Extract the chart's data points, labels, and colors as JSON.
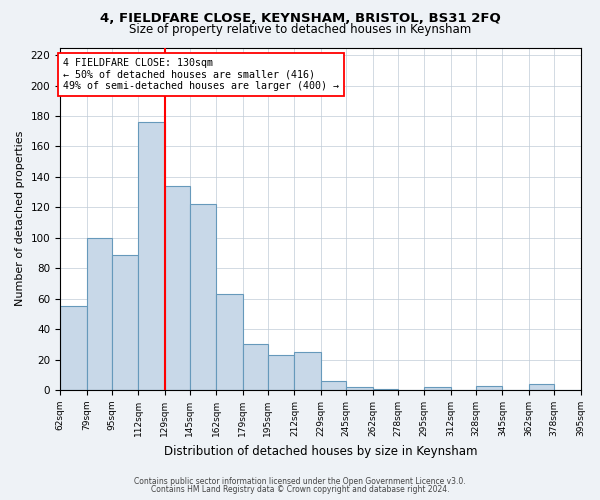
{
  "title": "4, FIELDFARE CLOSE, KEYNSHAM, BRISTOL, BS31 2FQ",
  "subtitle": "Size of property relative to detached houses in Keynsham",
  "xlabel": "Distribution of detached houses by size in Keynsham",
  "ylabel": "Number of detached properties",
  "bins": [
    62,
    79,
    95,
    112,
    129,
    145,
    162,
    179,
    195,
    212,
    229,
    245,
    262,
    278,
    295,
    312,
    328,
    345,
    362,
    378,
    395
  ],
  "bar_heights": [
    55,
    100,
    89,
    176,
    134,
    122,
    63,
    30,
    23,
    25,
    6,
    2,
    1,
    0,
    2,
    0,
    3,
    0,
    4,
    0
  ],
  "bar_color": "#c8d8e8",
  "bar_edge_color": "#6699bb",
  "vline_x": 129,
  "vline_color": "red",
  "annotation_text": "4 FIELDFARE CLOSE: 130sqm\n← 50% of detached houses are smaller (416)\n49% of semi-detached houses are larger (400) →",
  "annotation_box_color": "white",
  "annotation_box_edge_color": "red",
  "ylim": [
    0,
    225
  ],
  "yticks": [
    0,
    20,
    40,
    60,
    80,
    100,
    120,
    140,
    160,
    180,
    200,
    220
  ],
  "tick_labels": [
    "62sqm",
    "79sqm",
    "95sqm",
    "112sqm",
    "129sqm",
    "145sqm",
    "162sqm",
    "179sqm",
    "195sqm",
    "212sqm",
    "229sqm",
    "245sqm",
    "262sqm",
    "278sqm",
    "295sqm",
    "312sqm",
    "328sqm",
    "345sqm",
    "362sqm",
    "378sqm",
    "395sqm"
  ],
  "footer_line1": "Contains HM Land Registry data © Crown copyright and database right 2024.",
  "footer_line2": "Contains public sector information licensed under the Open Government Licence v3.0.",
  "bg_color": "#eef2f6",
  "plot_bg_color": "#ffffff"
}
